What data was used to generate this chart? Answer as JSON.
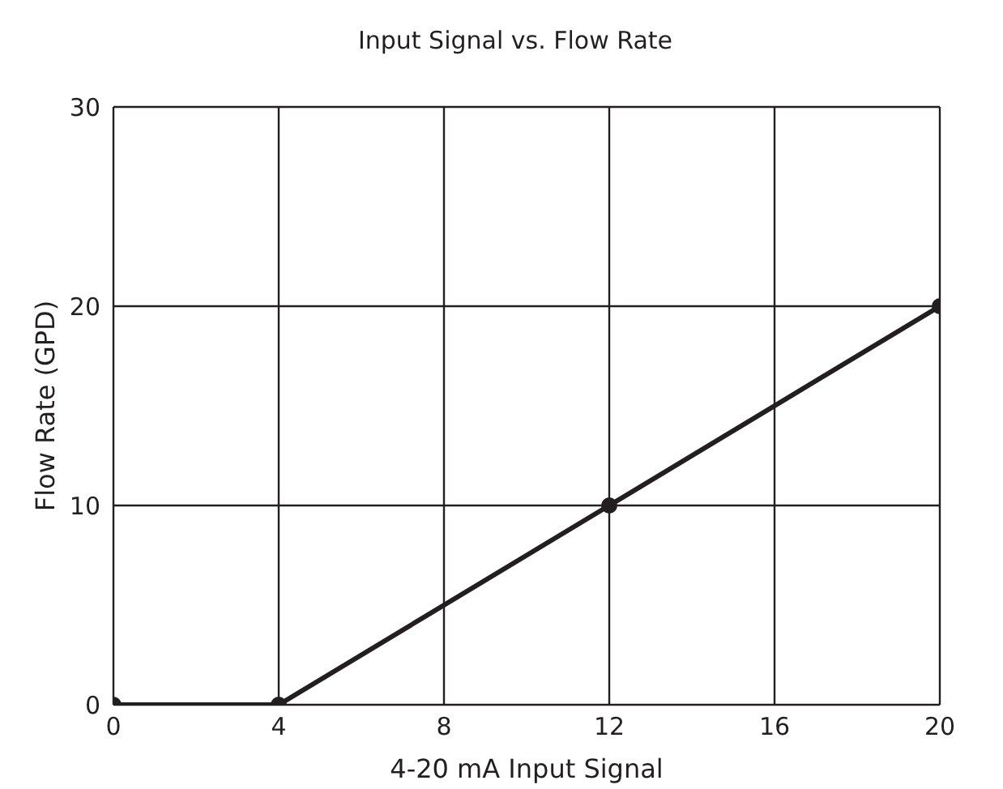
{
  "chart_data": {
    "type": "line",
    "title": "Input Signal vs. Flow Rate",
    "xlabel": "4-20 mA Input Signal",
    "ylabel": "Flow Rate (GPD)",
    "x": [
      0,
      4,
      12,
      20
    ],
    "series": [
      {
        "color": "#231f20",
        "values": [
          0,
          0,
          10,
          20
        ]
      }
    ],
    "xlim": [
      0,
      20
    ],
    "xticks": [
      0,
      4,
      8,
      12,
      16,
      20
    ],
    "ylim": [
      0,
      30
    ],
    "yticks": [
      0,
      10,
      20,
      30
    ],
    "grid": true,
    "legend": false,
    "marker": "circle",
    "line_style": "solid"
  }
}
